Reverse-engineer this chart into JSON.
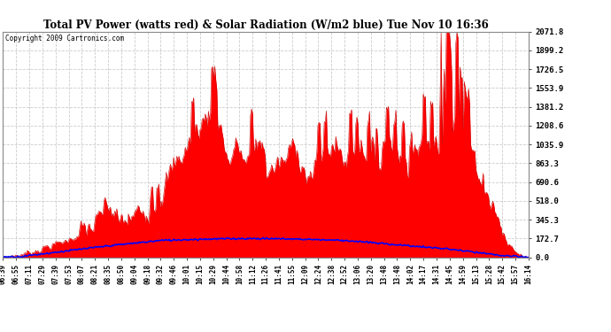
{
  "title": "Total PV Power (watts red) & Solar Radiation (W/m2 blue) Tue Nov 10 16:36",
  "copyright_text": "Copyright 2009 Cartronics.com",
  "background_color": "#ffffff",
  "plot_bg_color": "#ffffff",
  "grid_color": "#bbbbbb",
  "pv_fill_color": "#ff0000",
  "pv_line_color": "#cc0000",
  "solar_line_color": "#0000ff",
  "ymin": 0.0,
  "ymax": 2071.8,
  "yticks": [
    0.0,
    172.7,
    345.3,
    518.0,
    690.6,
    863.3,
    1035.9,
    1208.6,
    1381.2,
    1553.9,
    1726.5,
    1899.2,
    2071.8
  ],
  "xtick_labels": [
    "06:39",
    "06:55",
    "07:11",
    "07:29",
    "07:39",
    "07:53",
    "08:07",
    "08:21",
    "08:35",
    "08:50",
    "09:04",
    "09:18",
    "09:32",
    "09:46",
    "10:01",
    "10:15",
    "10:29",
    "10:44",
    "10:58",
    "11:12",
    "11:26",
    "11:41",
    "11:55",
    "12:09",
    "12:24",
    "12:38",
    "12:52",
    "13:06",
    "13:20",
    "13:48",
    "13:48",
    "14:02",
    "14:17",
    "14:31",
    "14:45",
    "14:59",
    "15:13",
    "15:28",
    "15:42",
    "15:57",
    "16:14"
  ],
  "solar_max": 172.7,
  "pv_main_peak": 1381.2,
  "pv_spike_max": 2071.8
}
